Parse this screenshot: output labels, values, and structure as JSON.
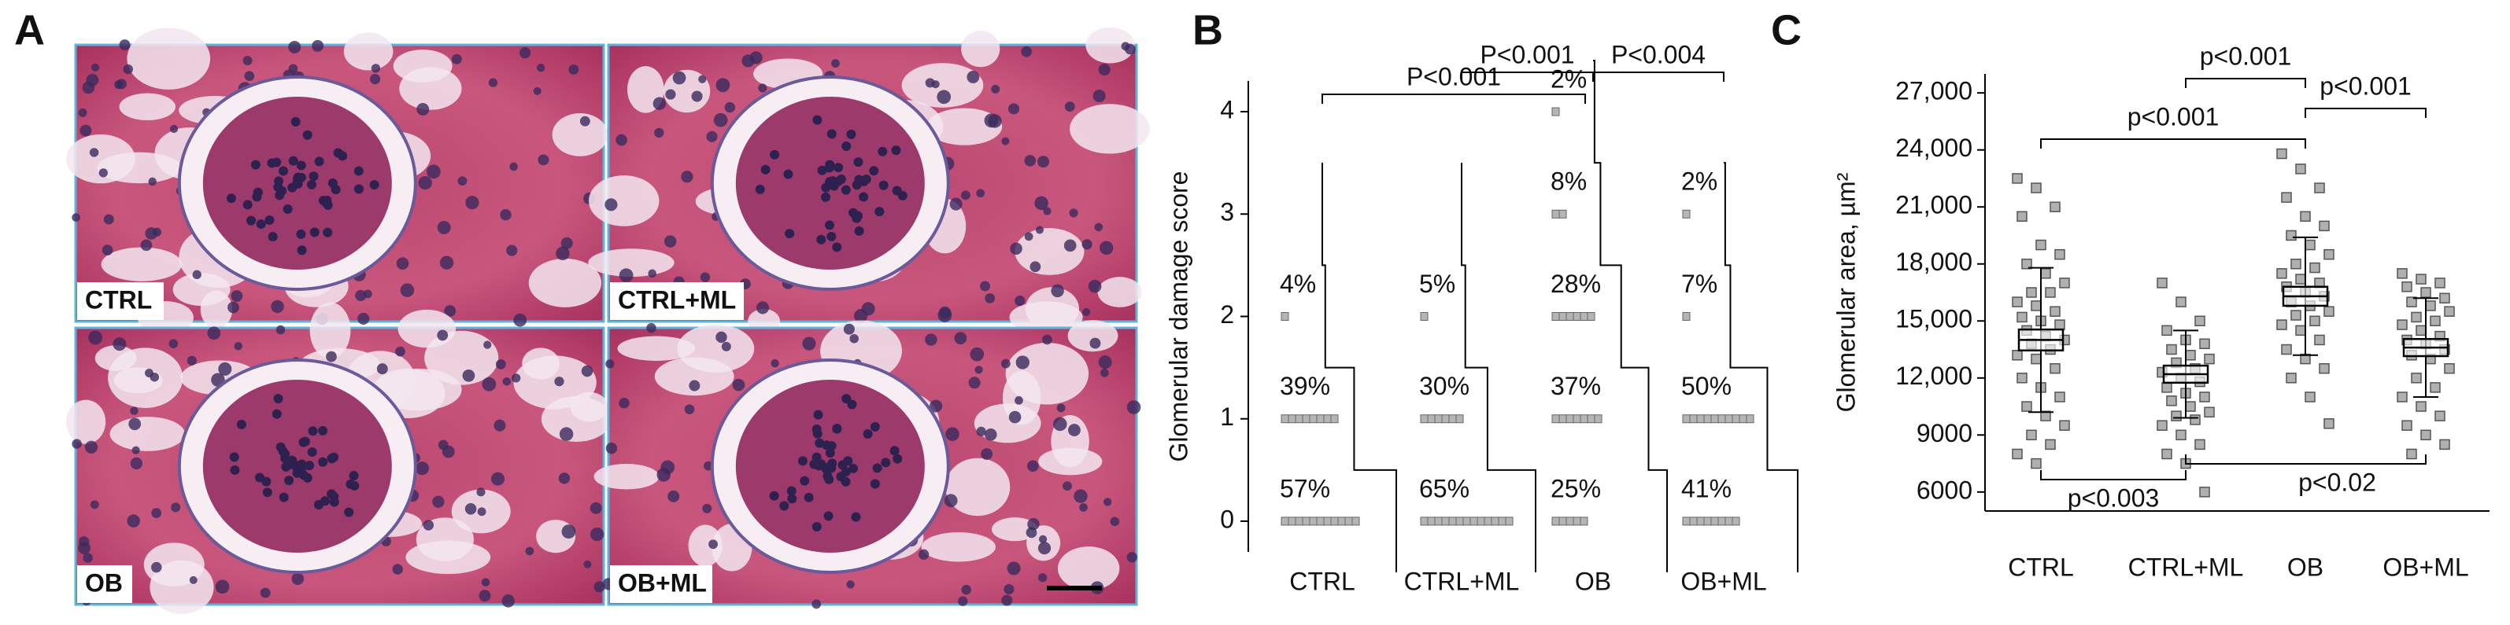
{
  "figure": {
    "panel_a": {
      "label": "A",
      "micrographs": [
        "CTRL",
        "CTRL+ML",
        "OB",
        "OB+ML"
      ]
    }
  },
  "chart_data": [
    {
      "type": "score-distribution",
      "label": "B",
      "ylabel": "Glomerular  damage score",
      "categories": [
        "CTRL",
        "CTRL+ML",
        "OB",
        "OB+ML"
      ],
      "values": [
        [
          57,
          39,
          4,
          null,
          null
        ],
        [
          65,
          30,
          5,
          null,
          null
        ],
        [
          25,
          37,
          28,
          8,
          2
        ],
        [
          41,
          50,
          7,
          2,
          null
        ]
      ],
      "value_labels": [
        [
          "57%",
          "39%",
          "4%",
          null,
          null
        ],
        [
          "65%",
          "30%",
          "5%",
          null,
          null
        ],
        [
          "25%",
          "37%",
          "28%",
          "8%",
          "2%"
        ],
        [
          "41%",
          "50%",
          "7%",
          "2%",
          null
        ]
      ],
      "ylim": [
        -0.3,
        4.3
      ],
      "yticks": [
        0,
        1,
        2,
        3,
        4
      ],
      "annotations": [
        {
          "text": "P<0.001",
          "from": "CTRL",
          "to": "OB"
        },
        {
          "text": "P<0.001",
          "from": "CTRL+ML",
          "to": "OB"
        },
        {
          "text": "P<0.004",
          "from": "OB",
          "to": "OB+ML"
        }
      ]
    },
    {
      "type": "dot-box",
      "label": "C",
      "ylabel": "Glomerular area, µm²",
      "categories": [
        "CTRL",
        "CTRL+ML",
        "OB",
        "OB+ML"
      ],
      "points": [
        [
          22500,
          22000,
          21000,
          20500,
          19000,
          18500,
          18000,
          17500,
          17000,
          16500,
          16500,
          16000,
          15800,
          15500,
          15200,
          15000,
          14800,
          14500,
          14200,
          14000,
          13800,
          13500,
          13200,
          13000,
          12500,
          12000,
          11500,
          11000,
          10500,
          10000,
          9500,
          9000,
          8500,
          8000,
          7500
        ],
        [
          17000,
          16000,
          15000,
          14500,
          14000,
          13800,
          13500,
          13200,
          13000,
          12800,
          12500,
          12300,
          12000,
          11800,
          11500,
          11200,
          11000,
          10800,
          10500,
          10200,
          10000,
          9800,
          9500,
          9000,
          8500,
          8000,
          7500,
          6000
        ],
        [
          23800,
          23000,
          22000,
          21500,
          20500,
          20000,
          19500,
          19000,
          18500,
          18000,
          17800,
          17500,
          17200,
          17000,
          16800,
          16500,
          16300,
          16000,
          15800,
          15500,
          15300,
          15000,
          14800,
          14500,
          14000,
          13500,
          13000,
          12500,
          12000,
          11000,
          9600
        ],
        [
          17500,
          17200,
          17000,
          16800,
          16500,
          16200,
          16000,
          15800,
          15500,
          15200,
          15000,
          14800,
          14500,
          14200,
          14000,
          13800,
          13500,
          13200,
          13000,
          12500,
          12000,
          11500,
          11000,
          10500,
          10000,
          9500,
          9000,
          8500,
          8000
        ]
      ],
      "mean": [
        14000,
        12200,
        16300,
        13600
      ],
      "sem": [
        550,
        450,
        500,
        450
      ],
      "sd": [
        3800,
        2300,
        3100,
        2600
      ],
      "ylim": [
        5000,
        28000
      ],
      "yticks": [
        6000,
        9000,
        {
          "value": 12000,
          "label": "12,000"
        },
        {
          "value": 15000,
          "label": "15,000"
        },
        {
          "value": 18000,
          "label": "18,000"
        },
        {
          "value": 21000,
          "label": "21,000"
        },
        {
          "value": 24000,
          "label": "24,000"
        },
        {
          "value": 27000,
          "label": "27,000"
        }
      ],
      "annotations": [
        {
          "text": "p<0.001",
          "from": "CTRL",
          "to": "OB"
        },
        {
          "text": "p<0.001",
          "from": "CTRL+ML",
          "to": "OB"
        },
        {
          "text": "p<0.001",
          "from": "OB",
          "to": "OB+ML"
        },
        {
          "text": "p<0.003",
          "from": "CTRL",
          "to": "CTRL+ML"
        },
        {
          "text": "p<0.02",
          "from": "CTRL+ML",
          "to": "OB+ML"
        }
      ]
    }
  ]
}
